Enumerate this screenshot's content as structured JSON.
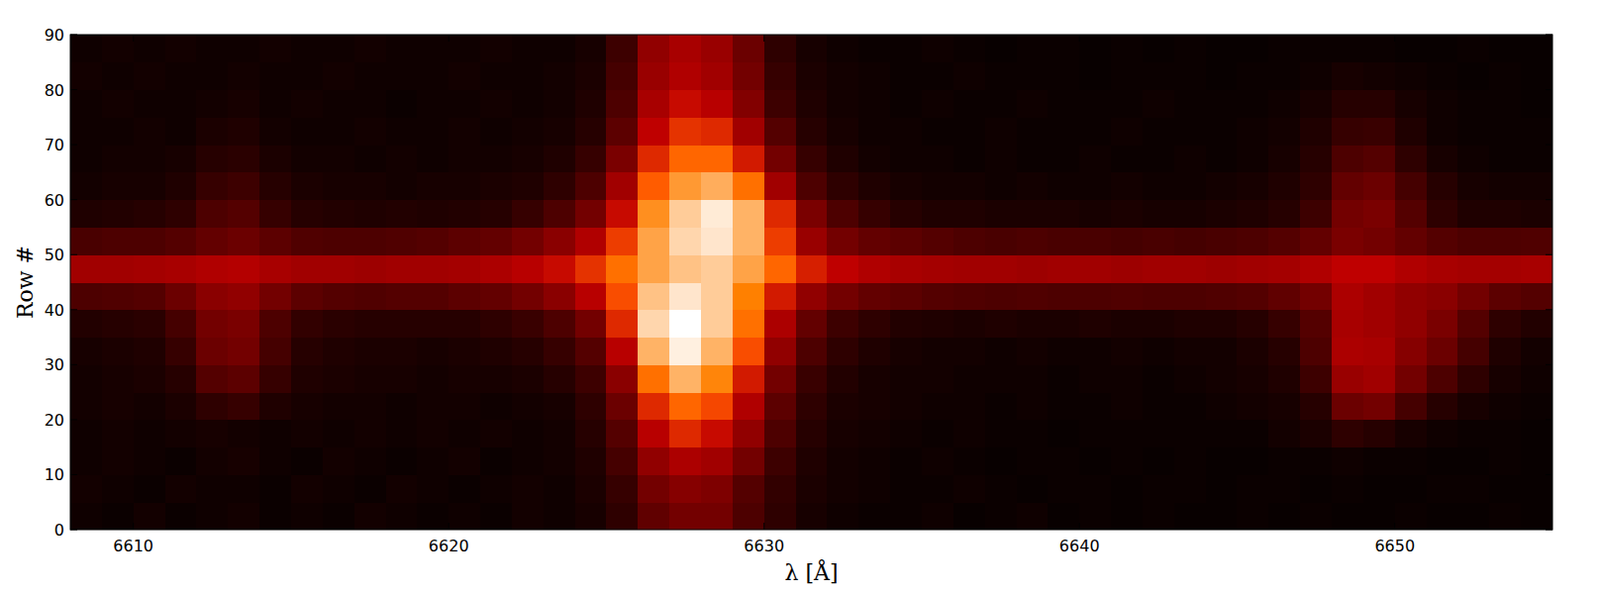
{
  "chart_data": {
    "type": "heatmap",
    "x_label": "λ [Å]",
    "y_label": "Row #",
    "xlim": [
      6608,
      6655
    ],
    "ylim": [
      0,
      90
    ],
    "xticks": [
      6610,
      6620,
      6630,
      6640,
      6650
    ],
    "yticks": [
      0,
      10,
      20,
      30,
      40,
      50,
      60,
      70,
      80,
      90
    ],
    "color_range": [
      0,
      1
    ],
    "x_edges": [
      6608,
      6609,
      6610,
      6611,
      6612,
      6613,
      6614,
      6615,
      6616,
      6617,
      6618,
      6619,
      6620,
      6621,
      6622,
      6623,
      6624,
      6625,
      6626,
      6627,
      6628,
      6629,
      6630,
      6631,
      6632,
      6633,
      6634,
      6635,
      6636,
      6637,
      6638,
      6639,
      6640,
      6641,
      6642,
      6643,
      6644,
      6645,
      6646,
      6647,
      6648,
      6649,
      6650,
      6651,
      6652,
      6653,
      6654,
      6655
    ],
    "y_edges": [
      0,
      5,
      10,
      15,
      20,
      25,
      30,
      35,
      40,
      45,
      50,
      55,
      60,
      65,
      70,
      75,
      80,
      85,
      90
    ],
    "cells": [
      [
        0.04,
        0.03,
        0.05,
        0.03,
        0.04,
        0.05,
        0.03,
        0.04,
        0.03,
        0.05,
        0.04,
        0.03,
        0.04,
        0.03,
        0.05,
        0.04,
        0.06,
        0.12,
        0.25,
        0.3,
        0.3,
        0.2,
        0.12,
        0.06,
        0.04,
        0.03,
        0.03,
        0.04,
        0.02,
        0.03,
        0.04,
        0.02,
        0.03,
        0.02,
        0.03,
        0.02,
        0.02,
        0.03,
        0.02,
        0.03,
        0.02,
        0.02,
        0.03,
        0.02,
        0.02,
        0.03,
        0.02
      ],
      [
        0.05,
        0.04,
        0.03,
        0.05,
        0.04,
        0.04,
        0.03,
        0.05,
        0.04,
        0.03,
        0.05,
        0.04,
        0.03,
        0.04,
        0.05,
        0.04,
        0.07,
        0.14,
        0.3,
        0.35,
        0.33,
        0.22,
        0.13,
        0.07,
        0.05,
        0.04,
        0.03,
        0.03,
        0.04,
        0.03,
        0.02,
        0.03,
        0.03,
        0.02,
        0.03,
        0.03,
        0.02,
        0.03,
        0.03,
        0.02,
        0.03,
        0.02,
        0.02,
        0.03,
        0.03,
        0.02,
        0.02
      ],
      [
        0.04,
        0.05,
        0.04,
        0.03,
        0.05,
        0.06,
        0.04,
        0.03,
        0.05,
        0.04,
        0.03,
        0.04,
        0.05,
        0.03,
        0.04,
        0.05,
        0.08,
        0.18,
        0.38,
        0.45,
        0.42,
        0.3,
        0.16,
        0.08,
        0.05,
        0.04,
        0.03,
        0.04,
        0.03,
        0.02,
        0.03,
        0.03,
        0.02,
        0.03,
        0.02,
        0.03,
        0.02,
        0.02,
        0.03,
        0.03,
        0.04,
        0.03,
        0.03,
        0.02,
        0.02,
        0.03,
        0.02
      ],
      [
        0.04,
        0.05,
        0.04,
        0.05,
        0.06,
        0.05,
        0.04,
        0.05,
        0.04,
        0.05,
        0.04,
        0.05,
        0.04,
        0.05,
        0.04,
        0.05,
        0.1,
        0.22,
        0.48,
        0.58,
        0.52,
        0.38,
        0.2,
        0.1,
        0.06,
        0.05,
        0.04,
        0.03,
        0.04,
        0.03,
        0.03,
        0.02,
        0.03,
        0.03,
        0.03,
        0.03,
        0.03,
        0.03,
        0.05,
        0.07,
        0.12,
        0.1,
        0.06,
        0.04,
        0.03,
        0.03,
        0.02
      ],
      [
        0.05,
        0.06,
        0.05,
        0.07,
        0.12,
        0.14,
        0.08,
        0.06,
        0.05,
        0.05,
        0.04,
        0.05,
        0.05,
        0.04,
        0.05,
        0.06,
        0.12,
        0.28,
        0.58,
        0.7,
        0.64,
        0.46,
        0.24,
        0.12,
        0.07,
        0.06,
        0.05,
        0.04,
        0.04,
        0.03,
        0.04,
        0.03,
        0.03,
        0.04,
        0.03,
        0.03,
        0.04,
        0.05,
        0.06,
        0.1,
        0.28,
        0.3,
        0.18,
        0.1,
        0.06,
        0.04,
        0.03
      ],
      [
        0.05,
        0.06,
        0.07,
        0.1,
        0.22,
        0.24,
        0.14,
        0.08,
        0.07,
        0.06,
        0.06,
        0.05,
        0.06,
        0.06,
        0.07,
        0.1,
        0.16,
        0.36,
        0.72,
        0.85,
        0.76,
        0.55,
        0.3,
        0.15,
        0.09,
        0.06,
        0.05,
        0.05,
        0.04,
        0.04,
        0.04,
        0.03,
        0.04,
        0.04,
        0.03,
        0.04,
        0.05,
        0.06,
        0.08,
        0.16,
        0.4,
        0.42,
        0.3,
        0.2,
        0.12,
        0.06,
        0.04
      ],
      [
        0.06,
        0.07,
        0.08,
        0.14,
        0.28,
        0.3,
        0.18,
        0.1,
        0.08,
        0.07,
        0.07,
        0.06,
        0.07,
        0.08,
        0.1,
        0.14,
        0.22,
        0.48,
        0.85,
        0.97,
        0.85,
        0.65,
        0.38,
        0.2,
        0.12,
        0.08,
        0.06,
        0.05,
        0.05,
        0.04,
        0.05,
        0.04,
        0.04,
        0.05,
        0.04,
        0.05,
        0.05,
        0.07,
        0.1,
        0.2,
        0.45,
        0.44,
        0.35,
        0.28,
        0.18,
        0.08,
        0.05
      ],
      [
        0.09,
        0.1,
        0.11,
        0.18,
        0.3,
        0.32,
        0.2,
        0.13,
        0.11,
        0.1,
        0.1,
        0.1,
        0.1,
        0.12,
        0.15,
        0.2,
        0.3,
        0.58,
        0.92,
        1.0,
        0.9,
        0.72,
        0.45,
        0.26,
        0.16,
        0.12,
        0.09,
        0.08,
        0.07,
        0.08,
        0.07,
        0.07,
        0.08,
        0.07,
        0.07,
        0.08,
        0.08,
        0.1,
        0.14,
        0.22,
        0.44,
        0.42,
        0.38,
        0.32,
        0.22,
        0.12,
        0.09
      ],
      [
        0.2,
        0.21,
        0.22,
        0.28,
        0.36,
        0.38,
        0.3,
        0.24,
        0.22,
        0.21,
        0.22,
        0.22,
        0.24,
        0.26,
        0.3,
        0.36,
        0.48,
        0.65,
        0.88,
        0.95,
        0.9,
        0.75,
        0.55,
        0.38,
        0.3,
        0.26,
        0.24,
        0.22,
        0.21,
        0.2,
        0.21,
        0.2,
        0.2,
        0.21,
        0.2,
        0.2,
        0.21,
        0.22,
        0.25,
        0.3,
        0.45,
        0.42,
        0.38,
        0.36,
        0.3,
        0.24,
        0.22
      ],
      [
        0.42,
        0.42,
        0.43,
        0.44,
        0.46,
        0.47,
        0.44,
        0.42,
        0.42,
        0.41,
        0.42,
        0.42,
        0.43,
        0.45,
        0.48,
        0.52,
        0.6,
        0.72,
        0.82,
        0.88,
        0.9,
        0.82,
        0.7,
        0.56,
        0.5,
        0.46,
        0.44,
        0.43,
        0.42,
        0.42,
        0.41,
        0.42,
        0.42,
        0.41,
        0.42,
        0.42,
        0.41,
        0.42,
        0.43,
        0.46,
        0.5,
        0.5,
        0.46,
        0.44,
        0.43,
        0.43,
        0.44
      ],
      [
        0.19,
        0.2,
        0.2,
        0.22,
        0.26,
        0.28,
        0.24,
        0.21,
        0.2,
        0.2,
        0.21,
        0.22,
        0.24,
        0.26,
        0.3,
        0.36,
        0.46,
        0.62,
        0.82,
        0.92,
        0.95,
        0.85,
        0.62,
        0.4,
        0.3,
        0.26,
        0.24,
        0.22,
        0.2,
        0.19,
        0.2,
        0.19,
        0.19,
        0.18,
        0.19,
        0.18,
        0.19,
        0.2,
        0.22,
        0.26,
        0.32,
        0.3,
        0.26,
        0.22,
        0.2,
        0.2,
        0.21
      ],
      [
        0.08,
        0.09,
        0.1,
        0.12,
        0.2,
        0.22,
        0.14,
        0.1,
        0.09,
        0.08,
        0.09,
        0.08,
        0.09,
        0.1,
        0.14,
        0.2,
        0.3,
        0.52,
        0.78,
        0.9,
        0.96,
        0.85,
        0.58,
        0.32,
        0.2,
        0.14,
        0.1,
        0.08,
        0.08,
        0.07,
        0.07,
        0.07,
        0.06,
        0.07,
        0.06,
        0.06,
        0.07,
        0.08,
        0.1,
        0.16,
        0.3,
        0.32,
        0.22,
        0.12,
        0.08,
        0.08,
        0.07
      ],
      [
        0.05,
        0.06,
        0.06,
        0.08,
        0.14,
        0.16,
        0.1,
        0.07,
        0.06,
        0.06,
        0.05,
        0.06,
        0.06,
        0.07,
        0.08,
        0.12,
        0.2,
        0.42,
        0.68,
        0.8,
        0.84,
        0.72,
        0.42,
        0.2,
        0.12,
        0.08,
        0.06,
        0.05,
        0.05,
        0.04,
        0.05,
        0.04,
        0.04,
        0.05,
        0.04,
        0.04,
        0.05,
        0.06,
        0.08,
        0.12,
        0.26,
        0.28,
        0.18,
        0.1,
        0.06,
        0.05,
        0.05
      ],
      [
        0.04,
        0.05,
        0.05,
        0.06,
        0.1,
        0.11,
        0.07,
        0.05,
        0.05,
        0.04,
        0.05,
        0.04,
        0.05,
        0.05,
        0.06,
        0.08,
        0.14,
        0.32,
        0.58,
        0.7,
        0.7,
        0.55,
        0.3,
        0.14,
        0.08,
        0.05,
        0.04,
        0.04,
        0.03,
        0.04,
        0.03,
        0.03,
        0.04,
        0.03,
        0.03,
        0.04,
        0.03,
        0.04,
        0.06,
        0.1,
        0.2,
        0.22,
        0.12,
        0.06,
        0.04,
        0.03,
        0.03
      ],
      [
        0.04,
        0.04,
        0.05,
        0.04,
        0.07,
        0.08,
        0.05,
        0.04,
        0.04,
        0.05,
        0.04,
        0.04,
        0.05,
        0.04,
        0.05,
        0.06,
        0.1,
        0.24,
        0.5,
        0.6,
        0.58,
        0.42,
        0.22,
        0.1,
        0.06,
        0.04,
        0.04,
        0.03,
        0.03,
        0.04,
        0.03,
        0.03,
        0.03,
        0.04,
        0.03,
        0.03,
        0.03,
        0.04,
        0.05,
        0.08,
        0.14,
        0.15,
        0.08,
        0.04,
        0.03,
        0.03,
        0.03
      ],
      [
        0.04,
        0.05,
        0.04,
        0.04,
        0.05,
        0.06,
        0.04,
        0.05,
        0.04,
        0.04,
        0.03,
        0.04,
        0.04,
        0.05,
        0.04,
        0.05,
        0.08,
        0.2,
        0.44,
        0.52,
        0.48,
        0.34,
        0.16,
        0.08,
        0.05,
        0.04,
        0.03,
        0.04,
        0.03,
        0.03,
        0.04,
        0.03,
        0.03,
        0.03,
        0.04,
        0.03,
        0.03,
        0.03,
        0.04,
        0.06,
        0.1,
        0.1,
        0.06,
        0.04,
        0.03,
        0.03,
        0.02
      ],
      [
        0.05,
        0.04,
        0.05,
        0.04,
        0.04,
        0.05,
        0.04,
        0.04,
        0.05,
        0.04,
        0.04,
        0.04,
        0.05,
        0.04,
        0.04,
        0.05,
        0.07,
        0.18,
        0.4,
        0.46,
        0.42,
        0.3,
        0.14,
        0.07,
        0.05,
        0.04,
        0.03,
        0.03,
        0.04,
        0.03,
        0.03,
        0.03,
        0.02,
        0.03,
        0.03,
        0.03,
        0.02,
        0.03,
        0.03,
        0.04,
        0.06,
        0.05,
        0.04,
        0.03,
        0.02,
        0.03,
        0.02
      ],
      [
        0.04,
        0.05,
        0.04,
        0.05,
        0.04,
        0.04,
        0.05,
        0.04,
        0.04,
        0.05,
        0.04,
        0.04,
        0.04,
        0.05,
        0.04,
        0.04,
        0.06,
        0.16,
        0.38,
        0.44,
        0.4,
        0.28,
        0.12,
        0.06,
        0.04,
        0.03,
        0.03,
        0.04,
        0.03,
        0.02,
        0.03,
        0.03,
        0.02,
        0.03,
        0.02,
        0.03,
        0.02,
        0.02,
        0.03,
        0.03,
        0.03,
        0.03,
        0.02,
        0.02,
        0.03,
        0.02,
        0.02
      ]
    ]
  }
}
